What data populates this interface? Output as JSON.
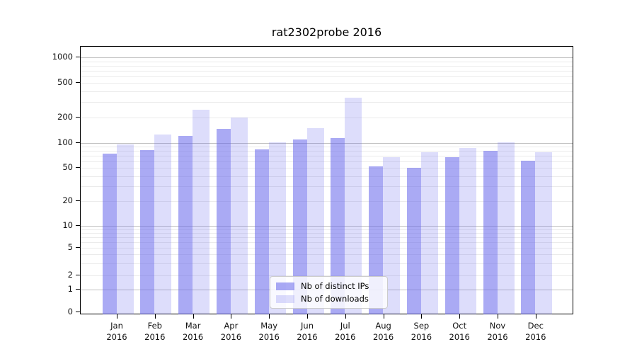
{
  "chart_data": {
    "type": "bar",
    "title": "rat2302probe 2016",
    "year": "2016",
    "categories": [
      "Jan 2016",
      "Feb 2016",
      "Mar 2016",
      "Apr 2016",
      "May 2016",
      "Jun 2016",
      "Jul 2016",
      "Aug 2016",
      "Sep 2016",
      "Oct 2016",
      "Nov 2016",
      "Dec 2016"
    ],
    "months": [
      "Jan",
      "Feb",
      "Mar",
      "Apr",
      "May",
      "Jun",
      "Jul",
      "Aug",
      "Sep",
      "Oct",
      "Nov",
      "Dec"
    ],
    "series": [
      {
        "name": "Nb of distinct IPs",
        "color": "rgba(100,100,235,0.55)",
        "values": [
          75,
          82,
          122,
          145,
          84,
          110,
          114,
          52,
          50,
          67,
          80,
          61
        ]
      },
      {
        "name": "Nb of downloads",
        "color": "rgba(100,100,235,0.22)",
        "values": [
          96,
          126,
          245,
          200,
          101,
          148,
          340,
          68,
          77,
          87,
          101,
          78
        ]
      }
    ],
    "xlabel": "",
    "ylabel": "",
    "yscale": "symlog",
    "yticks": [
      0,
      1,
      2,
      5,
      10,
      20,
      50,
      100,
      200,
      500,
      1000
    ],
    "ylim": [
      0,
      1400
    ],
    "grid": true,
    "legend_position": "lower-center"
  },
  "colors": {
    "distinct_ips": "#a2a2f2",
    "downloads": "#dcdcf9",
    "grid_major": "#c0c0c0",
    "grid_minor": "#ebebeb"
  }
}
